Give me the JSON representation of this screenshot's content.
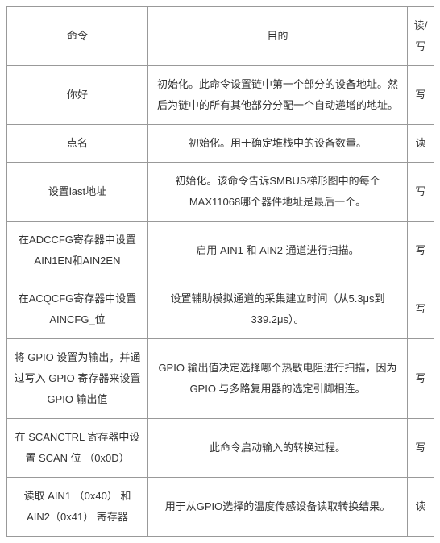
{
  "table": {
    "headers": {
      "command": "命令",
      "purpose": "目的",
      "rw": "读/写"
    },
    "rows": [
      {
        "command": "你好",
        "purpose": "初始化。此命令设置链中第一个部分的设备地址。然后为链中的所有其他部分分配一个自动递增的地址。",
        "rw": "写"
      },
      {
        "command": "点名",
        "purpose": "初始化。用于确定堆栈中的设备数量。",
        "rw": "读"
      },
      {
        "command": "设置last地址",
        "purpose": "初始化。该命令告诉SMBUS梯形图中的每个MAX11068哪个器件地址是最后一个。",
        "rw": "写"
      },
      {
        "command": "在ADCCFG寄存器中设置 AIN1EN和AIN2EN",
        "purpose": "启用 AIN1 和 AIN2 通道进行扫描。",
        "rw": "写"
      },
      {
        "command": "在ACQCFG寄存器中设置AINCFG_位",
        "purpose": "设置辅助模拟通道的采集建立时间（从5.3μs到339.2μs）。",
        "rw": "写"
      },
      {
        "command": "将 GPIO 设置为输出，并通过写入 GPIO 寄存器来设置 GPIO 输出值",
        "purpose": "GPIO 输出值决定选择哪个热敏电阻进行扫描，因为 GPIO 与多路复用器的选定引脚相连。",
        "rw": "写"
      },
      {
        "command": "在 SCANCTRL 寄存器中设置 SCAN 位 （0x0D）",
        "purpose": "此命令启动输入的转换过程。",
        "rw": "写"
      },
      {
        "command": "读取 AIN1 （0x40） 和 AIN2（0x41） 寄存器",
        "purpose": "用于从GPIO选择的温度传感设备读取转换结果。",
        "rw": "读"
      }
    ]
  }
}
